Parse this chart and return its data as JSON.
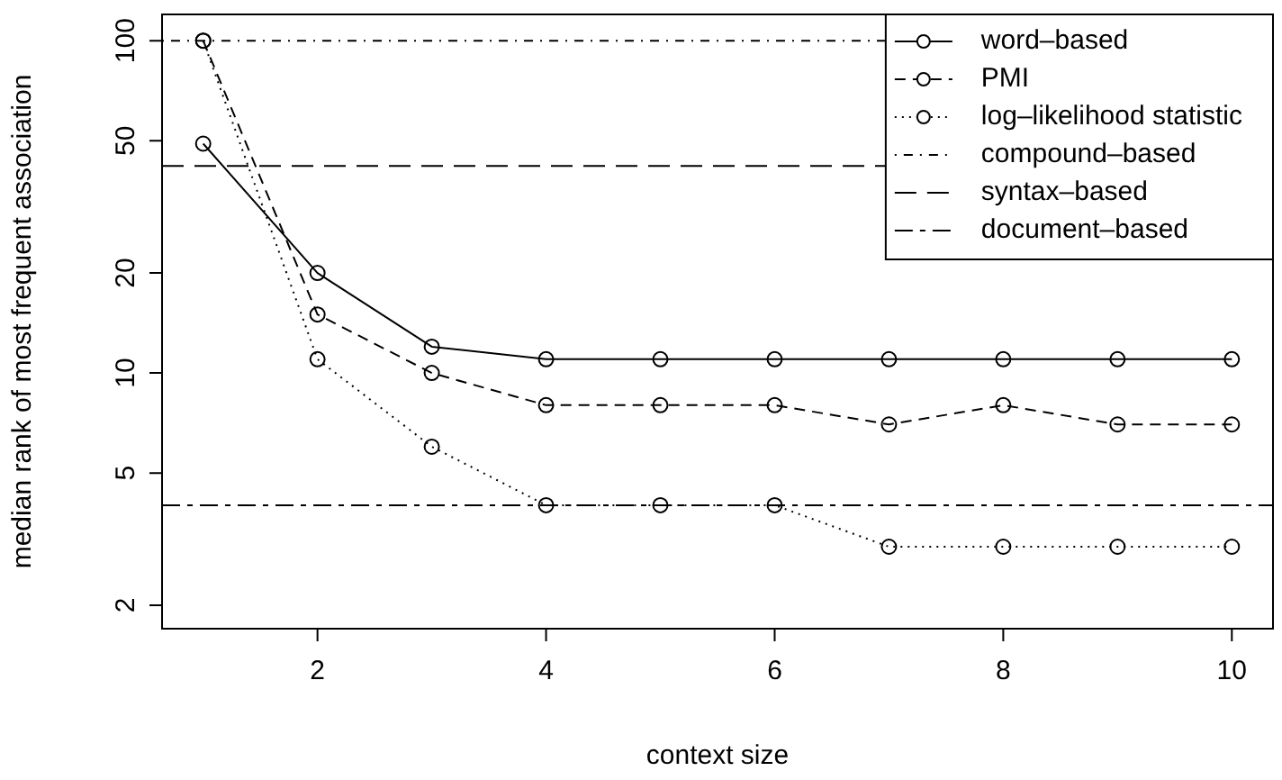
{
  "chart_data": {
    "type": "line",
    "xlabel": "context size",
    "ylabel": "median rank of most frequent association",
    "x": [
      1,
      2,
      3,
      4,
      5,
      6,
      7,
      8,
      9,
      10
    ],
    "series": [
      {
        "name": "word–based",
        "color": "#000000",
        "line_style": "solid",
        "values": [
          49,
          20,
          12,
          11,
          11,
          11,
          11,
          11,
          11,
          11
        ]
      },
      {
        "name": "PMI",
        "color": "#000000",
        "line_style": "dashed",
        "values": [
          100,
          15,
          10,
          8,
          8,
          8,
          7,
          8,
          7,
          7
        ]
      },
      {
        "name": "log–likelihood statistic",
        "color": "#000000",
        "line_style": "dotted",
        "values": [
          100,
          11,
          6,
          4,
          4,
          4,
          3,
          3,
          3,
          3
        ]
      }
    ],
    "ref_lines": [
      {
        "axis": "y",
        "value": 100,
        "label": "compound–based",
        "color": "#000000",
        "line_style": "dotdash"
      },
      {
        "axis": "y",
        "value": 42,
        "label": "syntax–based",
        "color": "#000000",
        "line_style": "longdash"
      },
      {
        "axis": "y",
        "value": 4,
        "label": "document–based",
        "color": "#000000",
        "line_style": "twodash"
      }
    ],
    "log": "y",
    "xlim": [
      0.64,
      10.36
    ],
    "ylim": [
      1.7,
      120
    ],
    "xticks": [
      2,
      4,
      6,
      8,
      10
    ],
    "yticks": [
      2,
      5,
      10,
      20,
      50,
      100
    ],
    "marker": "circle",
    "grid": false,
    "legend": "top right"
  }
}
